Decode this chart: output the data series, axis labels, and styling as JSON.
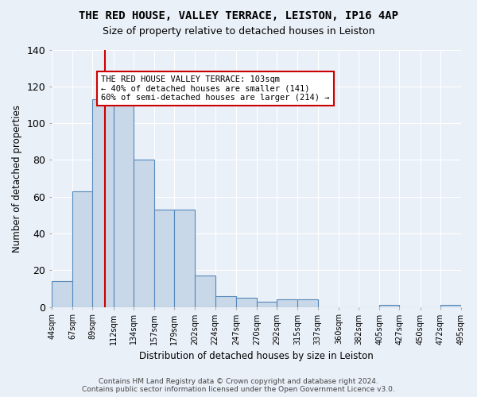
{
  "title1": "THE RED HOUSE, VALLEY TERRACE, LEISTON, IP16 4AP",
  "title2": "Size of property relative to detached houses in Leiston",
  "xlabel": "Distribution of detached houses by size in Leiston",
  "ylabel": "Number of detached properties",
  "bar_edges": [
    44,
    67,
    89,
    112,
    134,
    157,
    179,
    202,
    224,
    247,
    270,
    292,
    315,
    337,
    360,
    382,
    405,
    427,
    450,
    472,
    495
  ],
  "bar_heights": [
    14,
    63,
    113,
    113,
    80,
    53,
    53,
    17,
    6,
    5,
    3,
    4,
    4,
    0,
    0,
    0,
    1,
    0,
    0,
    1
  ],
  "bar_color": "#c8d8e8",
  "bar_edge_color": "#5588bb",
  "vline_x": 103,
  "vline_color": "#cc0000",
  "ylim": [
    0,
    140
  ],
  "yticks": [
    0,
    20,
    40,
    60,
    80,
    100,
    120,
    140
  ],
  "annotation_text": "THE RED HOUSE VALLEY TERRACE: 103sqm\n← 40% of detached houses are smaller (141)\n60% of semi-detached houses are larger (214) →",
  "annotation_box_color": "#ffffff",
  "annotation_box_edge": "#cc0000",
  "footer1": "Contains HM Land Registry data © Crown copyright and database right 2024.",
  "footer2": "Contains public sector information licensed under the Open Government Licence v3.0.",
  "bg_color": "#eaf0f8",
  "plot_bg_color": "#eaf0f8",
  "grid_color": "#ffffff"
}
